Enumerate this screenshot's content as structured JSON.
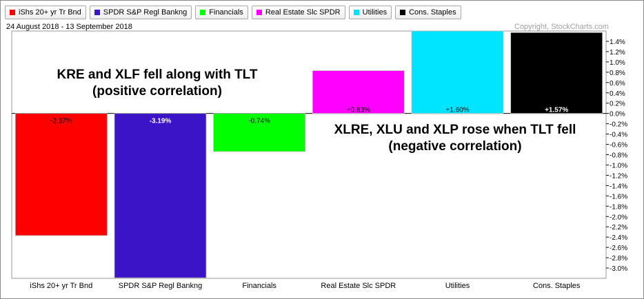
{
  "legend": [
    {
      "label": "iShs 20+ yr Tr Bnd",
      "color": "#ff0000"
    },
    {
      "label": "SPDR S&P Regl Bankng",
      "color": "#3b14c8"
    },
    {
      "label": "Financials",
      "color": "#00ff00"
    },
    {
      "label": "Real Estate Slc SPDR",
      "color": "#ff00ff"
    },
    {
      "label": "Utilities",
      "color": "#00e5ff"
    },
    {
      "label": "Cons. Staples",
      "color": "#000000"
    }
  ],
  "header": {
    "date_range": "24 August 2018 - 13 September 2018",
    "copyright": "Copyright, StockCharts.com"
  },
  "annotations": {
    "left_line1": "KRE and XLF fell along with TLT",
    "left_line2": "(positive correlation)",
    "right_line1": "XLRE, XLU and XLP rose when TLT fell",
    "right_line2": "(negative correlation)"
  },
  "chart_data": {
    "type": "bar",
    "categories": [
      "iShs 20+ yr Tr Bnd",
      "SPDR S&P Regl Bankng",
      "Financials",
      "Real Estate Slc SPDR",
      "Utilities",
      "Cons. Staples"
    ],
    "values": [
      -2.37,
      -3.19,
      -0.74,
      0.83,
      1.6,
      1.57
    ],
    "data_labels": [
      "-2.37%",
      "-3.19%",
      "-0.74%",
      "+0.83%",
      "+1.60%",
      "+1.57%"
    ],
    "colors": [
      "#ff0000",
      "#3b14c8",
      "#00ff00",
      "#ff00ff",
      "#00e5ff",
      "#000000"
    ],
    "label_colors": [
      "#000000",
      "#ffffff",
      "#000000",
      "#000000",
      "#000000",
      "#ffffff"
    ],
    "label_bold": [
      false,
      true,
      false,
      false,
      false,
      true
    ],
    "ylim": [
      -3.2,
      1.6
    ],
    "y_ticks": [
      1.4,
      1.2,
      1.0,
      0.8,
      0.6,
      0.4,
      0.2,
      0.0,
      -0.2,
      -0.4,
      -0.6,
      -0.8,
      -1.0,
      -1.2,
      -1.4,
      -1.6,
      -1.8,
      -2.0,
      -2.2,
      -2.4,
      -2.6,
      -2.8,
      -3.0
    ],
    "y_tick_labels": [
      "1.4%",
      "1.2%",
      "1.0%",
      "0.8%",
      "0.6%",
      "0.4%",
      "0.2%",
      "0.0%",
      "-0.2%",
      "-0.4%",
      "-0.6%",
      "-0.8%",
      "-1.0%",
      "-1.2%",
      "-1.4%",
      "-1.6%",
      "-1.8%",
      "-2.0%",
      "-2.2%",
      "-2.4%",
      "-2.6%",
      "-2.8%",
      "-3.0%"
    ],
    "y_axis_side": "right",
    "grid": false,
    "xlabel": "",
    "ylabel": ""
  }
}
